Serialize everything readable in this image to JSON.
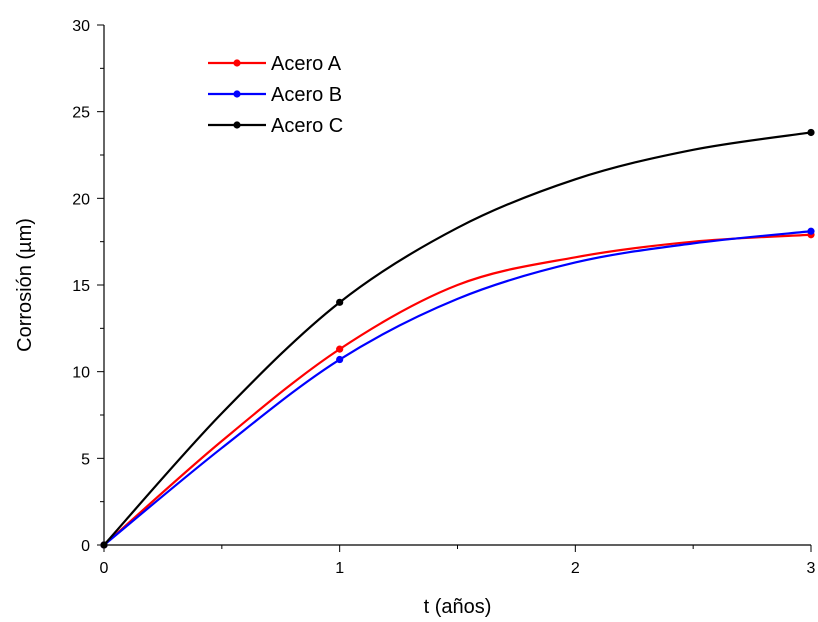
{
  "chart_data": {
    "type": "line",
    "xlabel": "t (años)",
    "ylabel": "Corrosión (µm)",
    "xlim": [
      0,
      3
    ],
    "ylim": [
      0,
      30
    ],
    "x_ticks": [
      "0",
      "1",
      "2",
      "3"
    ],
    "y_ticks": [
      "0",
      "5",
      "10",
      "15",
      "20",
      "25",
      "30"
    ],
    "grid": false,
    "legend_position": "top-left",
    "series": [
      {
        "name": "Acero A",
        "color": "#ff0000",
        "points": [
          [
            0,
            0
          ],
          [
            1,
            11.3
          ],
          [
            3,
            17.9
          ]
        ],
        "curve": [
          [
            0,
            0
          ],
          [
            0.5,
            6.0
          ],
          [
            1,
            11.3
          ],
          [
            1.5,
            15.0
          ],
          [
            2,
            16.6
          ],
          [
            2.5,
            17.5
          ],
          [
            3,
            17.9
          ]
        ]
      },
      {
        "name": "Acero B",
        "color": "#0000ff",
        "points": [
          [
            0,
            0
          ],
          [
            1,
            10.7
          ],
          [
            3,
            18.1
          ]
        ],
        "curve": [
          [
            0,
            0
          ],
          [
            0.5,
            5.6
          ],
          [
            1,
            10.7
          ],
          [
            1.5,
            14.2
          ],
          [
            2,
            16.3
          ],
          [
            2.5,
            17.4
          ],
          [
            3,
            18.1
          ]
        ]
      },
      {
        "name": "Acero C",
        "color": "#000000",
        "points": [
          [
            0,
            0
          ],
          [
            1,
            14.0
          ],
          [
            3,
            23.8
          ]
        ],
        "curve": [
          [
            0,
            0
          ],
          [
            0.5,
            7.6
          ],
          [
            1,
            14.0
          ],
          [
            1.5,
            18.3
          ],
          [
            2,
            21.1
          ],
          [
            2.5,
            22.8
          ],
          [
            3,
            23.8
          ]
        ]
      }
    ]
  }
}
